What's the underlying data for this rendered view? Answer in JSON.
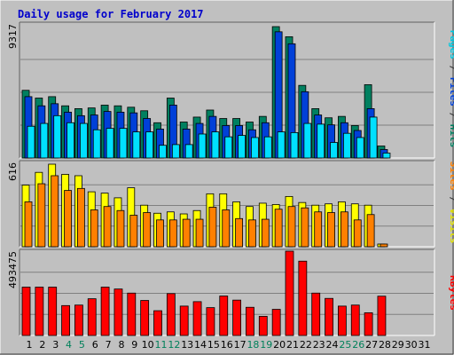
{
  "chart_data": [
    {
      "type": "bar",
      "title": "Daily usage for February 2017",
      "max_label": "9317",
      "side_labels": [
        {
          "text": "Pages",
          "color": "#00c8e0"
        },
        {
          "text": " / ",
          "color": "#333333"
        },
        {
          "text": "Files",
          "color": "#0040d8"
        },
        {
          "text": " / ",
          "color": "#333333"
        },
        {
          "text": "Hits",
          "color": "#008060"
        }
      ],
      "ylim": [
        0,
        9317
      ],
      "categories": [
        "1",
        "2",
        "3",
        "4",
        "5",
        "6",
        "7",
        "8",
        "9",
        "10",
        "11",
        "12",
        "13",
        "14",
        "15",
        "16",
        "17",
        "18",
        "19",
        "20",
        "21",
        "22",
        "23",
        "24",
        "25",
        "26",
        "27",
        "28",
        "29",
        "30",
        "31"
      ],
      "series": [
        {
          "name": "Hits",
          "color": "#008060",
          "values": [
            4800,
            4250,
            4350,
            3700,
            3500,
            3550,
            3750,
            3700,
            3600,
            3350,
            2500,
            4250,
            2550,
            2900,
            3400,
            2800,
            2800,
            2550,
            2950,
            9317,
            8600,
            5150,
            3500,
            2850,
            2950,
            2300,
            5200,
            850,
            0,
            0,
            0
          ]
        },
        {
          "name": "Files",
          "color": "#0040d8",
          "values": [
            4350,
            3700,
            3850,
            3250,
            3000,
            3050,
            3300,
            3250,
            3200,
            2800,
            2050,
            3750,
            2050,
            2450,
            2950,
            2300,
            2300,
            2000,
            2500,
            8950,
            8100,
            4700,
            3050,
            2350,
            2500,
            1950,
            3500,
            600,
            0,
            0,
            0
          ]
        },
        {
          "name": "Pages",
          "color": "#00e0ff",
          "values": [
            2250,
            2450,
            3000,
            2500,
            2450,
            2000,
            2100,
            2100,
            1850,
            1850,
            900,
            950,
            950,
            1700,
            1850,
            1500,
            1600,
            1450,
            1500,
            1850,
            1800,
            2450,
            2400,
            1100,
            1750,
            1450,
            2900,
            350,
            0,
            0,
            0
          ]
        }
      ]
    },
    {
      "type": "bar",
      "max_label": "616",
      "side_labels": [
        {
          "text": "Sites",
          "color": "#ff8000"
        },
        {
          "text": " / ",
          "color": "#333333"
        },
        {
          "text": "Visits",
          "color": "#e0e000"
        }
      ],
      "ylim": [
        0,
        616
      ],
      "categories": [
        "1",
        "2",
        "3",
        "4",
        "5",
        "6",
        "7",
        "8",
        "9",
        "10",
        "11",
        "12",
        "13",
        "14",
        "15",
        "16",
        "17",
        "18",
        "19",
        "20",
        "21",
        "22",
        "23",
        "24",
        "25",
        "26",
        "27",
        "28",
        "29",
        "30",
        "31"
      ],
      "series": [
        {
          "name": "Visits",
          "color": "#ffff00",
          "values": [
            460,
            555,
            616,
            540,
            530,
            410,
            400,
            365,
            440,
            310,
            250,
            260,
            245,
            270,
            395,
            395,
            335,
            300,
            325,
            315,
            375,
            330,
            310,
            320,
            335,
            320,
            310,
            20,
            0,
            0,
            0
          ]
        },
        {
          "name": "Sites",
          "color": "#ff8000",
          "values": [
            335,
            470,
            530,
            420,
            435,
            275,
            300,
            270,
            235,
            255,
            200,
            200,
            205,
            205,
            295,
            275,
            210,
            200,
            205,
            280,
            300,
            290,
            260,
            255,
            260,
            200,
            240,
            20,
            0,
            0,
            0
          ]
        }
      ]
    },
    {
      "type": "bar",
      "max_label": "493475",
      "side_labels": [
        {
          "text": "KBytes",
          "color": "#ff0000"
        }
      ],
      "ylim": [
        0,
        493475
      ],
      "categories": [
        "1",
        "2",
        "3",
        "4",
        "5",
        "6",
        "7",
        "8",
        "9",
        "10",
        "11",
        "12",
        "13",
        "14",
        "15",
        "16",
        "17",
        "18",
        "19",
        "20",
        "21",
        "22",
        "23",
        "24",
        "25",
        "26",
        "27",
        "28",
        "29",
        "30",
        "31"
      ],
      "series": [
        {
          "name": "KBytes",
          "color": "#ff0000",
          "values": [
            283000,
            283000,
            283000,
            175000,
            178000,
            215000,
            283000,
            272000,
            248000,
            205000,
            145000,
            245000,
            172000,
            198000,
            163000,
            231000,
            207000,
            165000,
            112000,
            153000,
            493475,
            435000,
            248000,
            217000,
            172000,
            178000,
            133000,
            230000,
            0,
            0,
            0
          ]
        }
      ]
    }
  ],
  "weekend_days": [
    "4",
    "5",
    "11",
    "12",
    "18",
    "19",
    "25",
    "26"
  ]
}
